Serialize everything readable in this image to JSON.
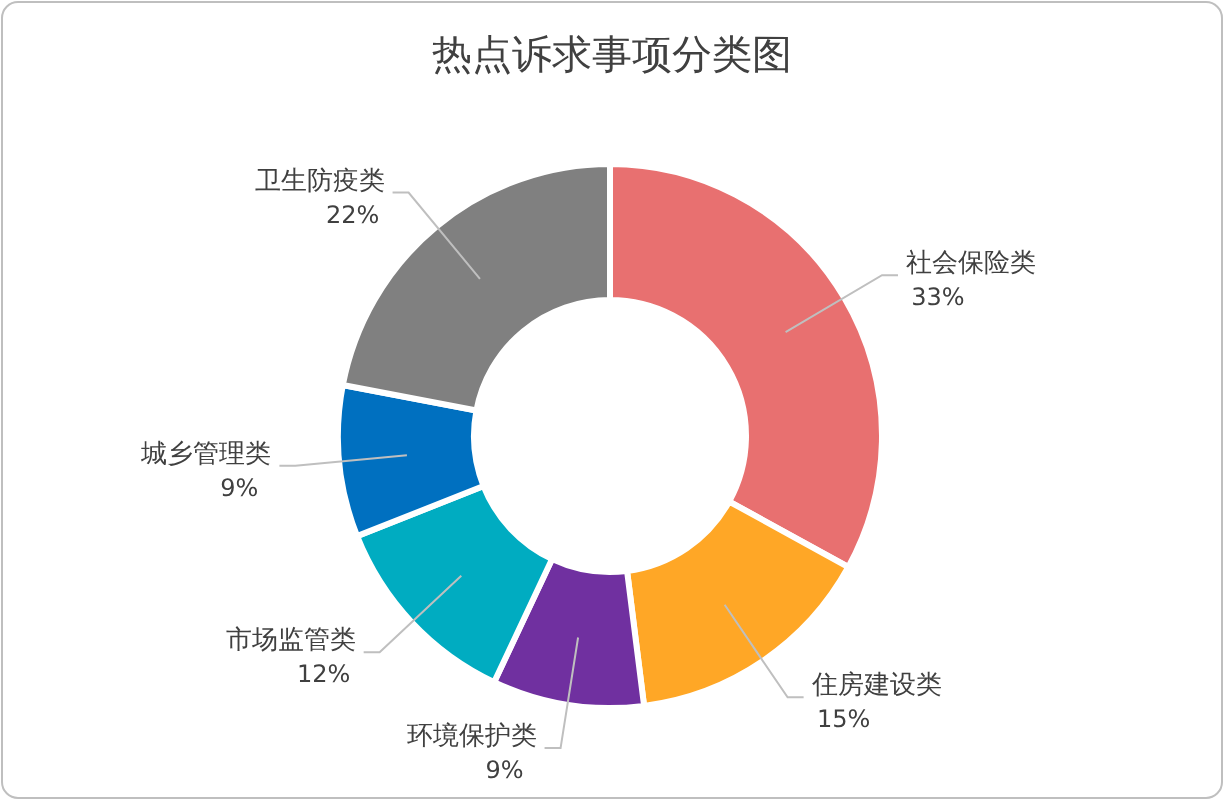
{
  "chart_data": {
    "type": "donut",
    "title": "热点诉求事项分类图",
    "categories": [
      "社会保险类",
      "住房建设类",
      "环境保护类",
      "市场监管类",
      "城乡管理类",
      "卫生防疫类"
    ],
    "values": [
      33,
      15,
      9,
      12,
      9,
      22
    ],
    "colors": [
      "#e87070",
      "#ffa726",
      "#7030a0",
      "#00acc1",
      "#0070c0",
      "#808080"
    ],
    "value_labels": [
      "33%",
      "15%",
      "9%",
      "12%",
      "9%",
      "22%"
    ],
    "data_labels": true
  }
}
